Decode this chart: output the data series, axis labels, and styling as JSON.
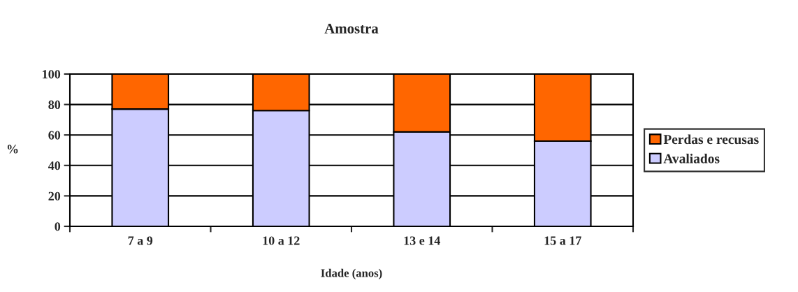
{
  "chart_data": {
    "type": "bar",
    "title": "Amostra",
    "xlabel": "Idade (anos)",
    "ylabel": "%",
    "categories": [
      "7 a 9",
      "10 a 12",
      "13 e 14",
      "15 a 17"
    ],
    "stacked": true,
    "series": [
      {
        "name": "Avaliados",
        "color": "#ccccff",
        "values": [
          77,
          76,
          62,
          56
        ]
      },
      {
        "name": "Perdas e recusas",
        "color": "#ff6600",
        "values": [
          23,
          24,
          38,
          44
        ]
      }
    ],
    "ylim": [
      0,
      100
    ],
    "yticks": [
      0,
      20,
      40,
      60,
      80,
      100
    ],
    "grid": "y",
    "legend": "right"
  }
}
